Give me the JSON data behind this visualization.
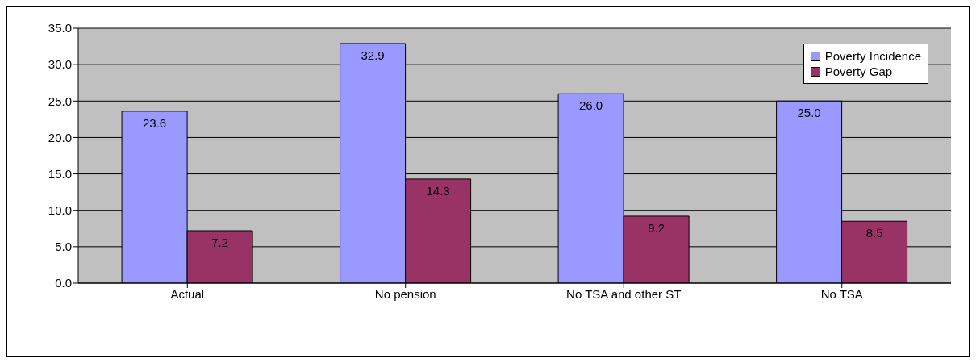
{
  "chart_data": {
    "type": "bar",
    "categories": [
      "Actual",
      "No pension",
      "No TSA and other ST",
      "No TSA"
    ],
    "series": [
      {
        "name": "Poverty Incidence",
        "color": "#9999ff",
        "values": [
          23.6,
          32.9,
          26.0,
          25.0
        ],
        "value_labels": [
          "23.6",
          "32.9",
          "26.0",
          "25.0"
        ]
      },
      {
        "name": "Poverty Gap",
        "color": "#993366",
        "values": [
          7.2,
          14.3,
          9.2,
          8.5
        ],
        "value_labels": [
          "7.2",
          "14.3",
          "9.2",
          "8.5"
        ]
      }
    ],
    "ylim": [
      0,
      35
    ],
    "yticks": [
      {
        "value": 0,
        "label": "0.0"
      },
      {
        "value": 5,
        "label": "5.0"
      },
      {
        "value": 10,
        "label": "10.0"
      },
      {
        "value": 15,
        "label": "15.0"
      },
      {
        "value": 20,
        "label": "20.0"
      },
      {
        "value": 25,
        "label": "25.0"
      },
      {
        "value": 30,
        "label": "30.0"
      },
      {
        "value": 35,
        "label": "35.0"
      }
    ],
    "grid": "y",
    "legend": "top right"
  }
}
